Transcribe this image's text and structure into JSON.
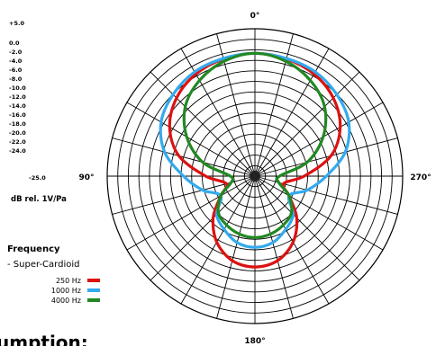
{
  "chart_data": {
    "type": "polar",
    "title": "",
    "angle_labels": [
      "0°",
      "90°",
      "180°",
      "270°"
    ],
    "radial_axis": {
      "unit_label": "dB rel. 1V/Pa",
      "min": -25.0,
      "max": 5.0,
      "tick_labels": [
        "+5.0",
        "0.0",
        "-2.0",
        "-4.0",
        "-6.0",
        "-8.0",
        "-10.0",
        "-12.0",
        "-14.0",
        "-16.0",
        "-18.0",
        "-20.0",
        "-22.0",
        "-24.0",
        "-25.0"
      ]
    },
    "legend": {
      "title": "Frequency",
      "subtitle": "- Super-Cardioid",
      "position": "bottom-left"
    },
    "series": [
      {
        "name": "250 Hz",
        "color": "#dd1111",
        "angle_deg": [
          0,
          15,
          30,
          45,
          60,
          75,
          90,
          105,
          120,
          135,
          150,
          165,
          180
        ],
        "level_db": [
          0.0,
          -0.3,
          -1.0,
          -2.5,
          -5.0,
          -9.0,
          -15.0,
          -19.0,
          -17.0,
          -13.0,
          -9.5,
          -7.2,
          -6.5
        ]
      },
      {
        "name": "1000 Hz",
        "color": "#33aaee",
        "angle_deg": [
          0,
          15,
          30,
          45,
          60,
          75,
          90,
          105,
          120,
          135,
          150,
          165,
          180
        ],
        "level_db": [
          0.0,
          -0.2,
          -0.5,
          -1.5,
          -3.0,
          -6.0,
          -10.5,
          -14.0,
          -17.0,
          -14.0,
          -12.5,
          -11.0,
          -10.5
        ]
      },
      {
        "name": "4000 Hz",
        "color": "#228822",
        "angle_deg": [
          0,
          15,
          30,
          45,
          60,
          75,
          90,
          105,
          120,
          135,
          150,
          165,
          180
        ],
        "level_db": [
          0.0,
          -0.8,
          -2.5,
          -5.0,
          -9.0,
          -14.0,
          -20.0,
          -20.0,
          -17.0,
          -14.5,
          -13.5,
          -12.8,
          -12.5
        ]
      }
    ],
    "grid": true
  },
  "page": {
    "footer_fragment": "umption:"
  }
}
